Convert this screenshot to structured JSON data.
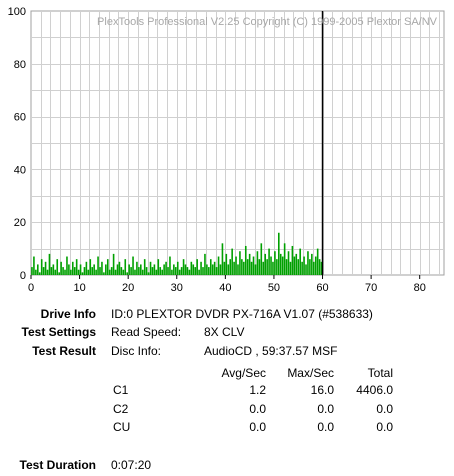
{
  "chart_data": {
    "type": "bar",
    "watermark": "PlexTools Professional V2.25 Copyright (C) 1999-2005 Plextor SA/NV",
    "xlim": [
      0,
      85
    ],
    "ylim": [
      0,
      100
    ],
    "x_ticks": [
      "0",
      "10",
      "20",
      "30",
      "40",
      "50",
      "60",
      "70",
      "80"
    ],
    "y_ticks": [
      "0",
      "20",
      "40",
      "60",
      "80",
      "100"
    ],
    "grid": true,
    "marker_x": 60,
    "series": [
      {
        "color": "#00a000",
        "x": [
          0.2,
          0.6,
          1.0,
          1.4,
          1.8,
          2.2,
          2.6,
          3.0,
          3.4,
          3.8,
          4.2,
          4.6,
          5.0,
          5.4,
          5.8,
          6.2,
          6.6,
          7.0,
          7.4,
          7.8,
          8.2,
          8.6,
          9.0,
          9.4,
          9.8,
          10.2,
          10.6,
          11.0,
          11.4,
          11.8,
          12.2,
          12.6,
          13.0,
          13.4,
          13.8,
          14.2,
          14.6,
          15.0,
          15.4,
          15.8,
          16.2,
          16.6,
          17.0,
          17.4,
          17.8,
          18.2,
          18.6,
          19.0,
          19.4,
          19.8,
          20.2,
          20.6,
          21.0,
          21.4,
          21.8,
          22.2,
          22.6,
          23.0,
          23.4,
          23.8,
          24.2,
          24.6,
          25.0,
          25.4,
          25.8,
          26.2,
          26.6,
          27.0,
          27.4,
          27.8,
          28.2,
          28.6,
          29.0,
          29.4,
          29.8,
          30.2,
          30.6,
          31.0,
          31.4,
          31.8,
          32.2,
          32.6,
          33.0,
          33.4,
          33.8,
          34.2,
          34.6,
          35.0,
          35.4,
          35.8,
          36.2,
          36.6,
          37.0,
          37.4,
          37.8,
          38.2,
          38.6,
          39.0,
          39.4,
          39.8,
          40.2,
          40.6,
          41.0,
          41.4,
          41.8,
          42.2,
          42.6,
          43.0,
          43.4,
          43.8,
          44.2,
          44.6,
          45.0,
          45.4,
          45.8,
          46.2,
          46.6,
          47.0,
          47.4,
          47.8,
          48.2,
          48.6,
          49.0,
          49.4,
          49.8,
          50.2,
          50.6,
          51.0,
          51.4,
          51.8,
          52.2,
          52.6,
          53.0,
          53.4,
          53.8,
          54.2,
          54.6,
          55.0,
          55.4,
          55.8,
          56.2,
          56.6,
          57.0,
          57.4,
          57.8,
          58.2,
          58.6,
          59.0,
          59.4,
          59.8
        ],
        "values": [
          3,
          7,
          2,
          4,
          1,
          6,
          3,
          5,
          2,
          8,
          3,
          4,
          2,
          6,
          1,
          5,
          3,
          2,
          7,
          4,
          2,
          5,
          3,
          6,
          2,
          4,
          1,
          3,
          5,
          2,
          6,
          3,
          4,
          2,
          7,
          3,
          5,
          1,
          4,
          6,
          2,
          3,
          8,
          2,
          4,
          5,
          3,
          2,
          6,
          1,
          4,
          3,
          7,
          2,
          5,
          3,
          4,
          2,
          6,
          3,
          1,
          5,
          3,
          4,
          2,
          6,
          3,
          2,
          4,
          5,
          3,
          7,
          2,
          4,
          3,
          5,
          2,
          3,
          6,
          4,
          3,
          2,
          5,
          4,
          3,
          6,
          2,
          5,
          3,
          8,
          4,
          3,
          6,
          4,
          5,
          3,
          7,
          4,
          12,
          5,
          8,
          4,
          6,
          10,
          5,
          7,
          4,
          9,
          6,
          5,
          11,
          6,
          8,
          5,
          7,
          4,
          9,
          6,
          12,
          5,
          8,
          6,
          10,
          7,
          5,
          9,
          6,
          16,
          8,
          7,
          12,
          6,
          9,
          5,
          11,
          7,
          8,
          6,
          10,
          5,
          7,
          4,
          9,
          6,
          8,
          5,
          7,
          10,
          6,
          5
        ]
      }
    ]
  },
  "info": {
    "drive_label": "Drive Info",
    "drive_value": "ID:0 PLEXTOR DVDR PX-716A V1.07 (#538633)",
    "settings_label": "Test Settings",
    "read_speed_label": "Read Speed:",
    "read_speed_value": "8X CLV",
    "result_label": "Test Result",
    "disc_info_label": "Disc Info:",
    "disc_info_value": "AudioCD , 59:37.57 MSF",
    "col_avg": "Avg/Sec",
    "col_max": "Max/Sec",
    "col_total": "Total",
    "rows": [
      {
        "name": "C1",
        "avg": "1.2",
        "max": "16.0",
        "total": "4406.0"
      },
      {
        "name": "C2",
        "avg": "0.0",
        "max": "0.0",
        "total": "0.0"
      },
      {
        "name": "CU",
        "avg": "0.0",
        "max": "0.0",
        "total": "0.0"
      }
    ],
    "duration_label": "Test Duration",
    "duration_value": "0:07:20"
  }
}
